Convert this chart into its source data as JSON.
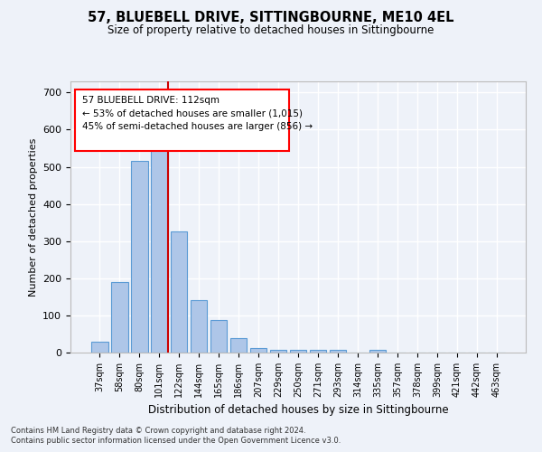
{
  "title1": "57, BLUEBELL DRIVE, SITTINGBOURNE, ME10 4EL",
  "title2": "Size of property relative to detached houses in Sittingbourne",
  "xlabel": "Distribution of detached houses by size in Sittingbourne",
  "ylabel": "Number of detached properties",
  "categories": [
    "37sqm",
    "58sqm",
    "80sqm",
    "101sqm",
    "122sqm",
    "144sqm",
    "165sqm",
    "186sqm",
    "207sqm",
    "229sqm",
    "250sqm",
    "271sqm",
    "293sqm",
    "314sqm",
    "335sqm",
    "357sqm",
    "378sqm",
    "399sqm",
    "421sqm",
    "442sqm",
    "463sqm"
  ],
  "values": [
    30,
    190,
    515,
    560,
    325,
    140,
    88,
    40,
    12,
    8,
    8,
    8,
    8,
    0,
    8,
    0,
    0,
    0,
    0,
    0,
    0
  ],
  "bar_color": "#aec6e8",
  "bar_edge_color": "#5b9bd5",
  "red_line_index": 3,
  "red_line_color": "#cc0000",
  "annotation_line1": "57 BLUEBELL DRIVE: 112sqm",
  "annotation_line2": "← 53% of detached houses are smaller (1,015)",
  "annotation_line3": "45% of semi-detached houses are larger (856) →",
  "ylim": [
    0,
    730
  ],
  "yticks": [
    0,
    100,
    200,
    300,
    400,
    500,
    600,
    700
  ],
  "footer1": "Contains HM Land Registry data © Crown copyright and database right 2024.",
  "footer2": "Contains public sector information licensed under the Open Government Licence v3.0.",
  "background_color": "#eef2f9",
  "grid_color": "#ffffff"
}
